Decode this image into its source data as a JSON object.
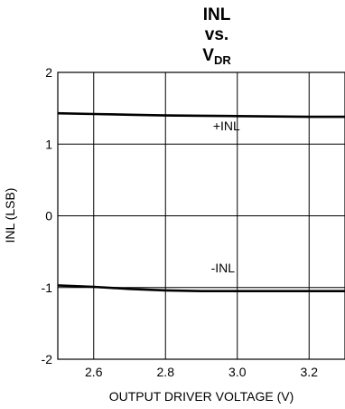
{
  "chart_data": {
    "type": "line",
    "title_lines": [
      "INL",
      "vs."
    ],
    "title_var_main": "V",
    "title_var_sub": "DR",
    "xlabel": "OUTPUT DRIVER VOLTAGE (V)",
    "ylabel": "INL (LSB)",
    "xlim": [
      2.5,
      3.3
    ],
    "ylim": [
      -2,
      2
    ],
    "x_ticks": [
      2.6,
      2.8,
      3.0,
      3.2
    ],
    "x_tick_labels": [
      "2.6",
      "2.8",
      "3.0",
      "3.2"
    ],
    "y_ticks": [
      2,
      1,
      0,
      -1,
      -2
    ],
    "y_tick_labels": [
      "2",
      "1",
      "0",
      "-1",
      "-2"
    ],
    "grid": true,
    "legend": "none",
    "series": [
      {
        "name": "+INL",
        "x": [
          2.5,
          2.6,
          2.7,
          2.8,
          2.9,
          3.0,
          3.1,
          3.2,
          3.3
        ],
        "y": [
          1.43,
          1.42,
          1.41,
          1.4,
          1.395,
          1.39,
          1.385,
          1.38,
          1.38
        ]
      },
      {
        "name": "-INL",
        "x": [
          2.5,
          2.6,
          2.7,
          2.8,
          2.9,
          3.0,
          3.1,
          3.2,
          3.3
        ],
        "y": [
          -0.97,
          -0.99,
          -1.02,
          -1.04,
          -1.05,
          -1.05,
          -1.05,
          -1.05,
          -1.05
        ]
      }
    ],
    "annotations": [
      {
        "text": "+INL",
        "x": 2.97,
        "y": 1.19
      },
      {
        "text": "-INL",
        "x": 2.96,
        "y": -0.79
      }
    ],
    "line_color": "#000000",
    "grid_color": "#000000"
  }
}
